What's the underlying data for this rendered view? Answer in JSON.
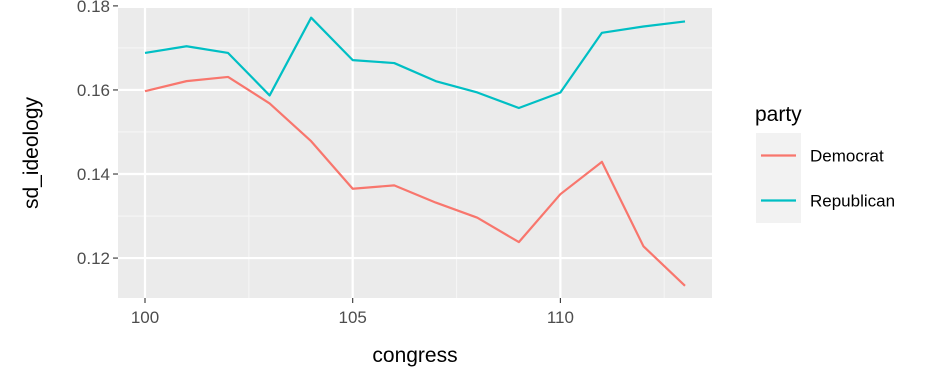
{
  "chart_data": {
    "type": "line",
    "xlabel": "congress",
    "ylabel": "sd_ideology",
    "xlim": [
      99.35,
      113.65
    ],
    "ylim": [
      0.1105,
      0.1795
    ],
    "x_ticks": [
      100,
      105,
      110
    ],
    "x_tick_labels": [
      "100",
      "105",
      "110"
    ],
    "y_ticks": [
      0.12,
      0.14,
      0.16,
      0.18
    ],
    "y_tick_labels": [
      "0.12",
      "0.14",
      "0.16",
      "0.18"
    ],
    "grid": true,
    "legend_title": "party",
    "legend_position": "right",
    "x": [
      100,
      101,
      102,
      103,
      104,
      105,
      106,
      107,
      108,
      109,
      110,
      111,
      112,
      113
    ],
    "series": [
      {
        "name": "Democrat",
        "color": "#F8766D",
        "values": [
          0.1597,
          0.1621,
          0.1631,
          0.1568,
          0.1478,
          0.1365,
          0.1373,
          0.1332,
          0.1296,
          0.1238,
          0.1352,
          0.1429,
          0.1228,
          0.1134
        ]
      },
      {
        "name": "Republican",
        "color": "#00BFC4",
        "values": [
          0.1688,
          0.1704,
          0.1688,
          0.1587,
          0.1772,
          0.1671,
          0.1664,
          0.1621,
          0.1594,
          0.1557,
          0.1594,
          0.1736,
          0.1751,
          0.1763
        ]
      }
    ]
  }
}
